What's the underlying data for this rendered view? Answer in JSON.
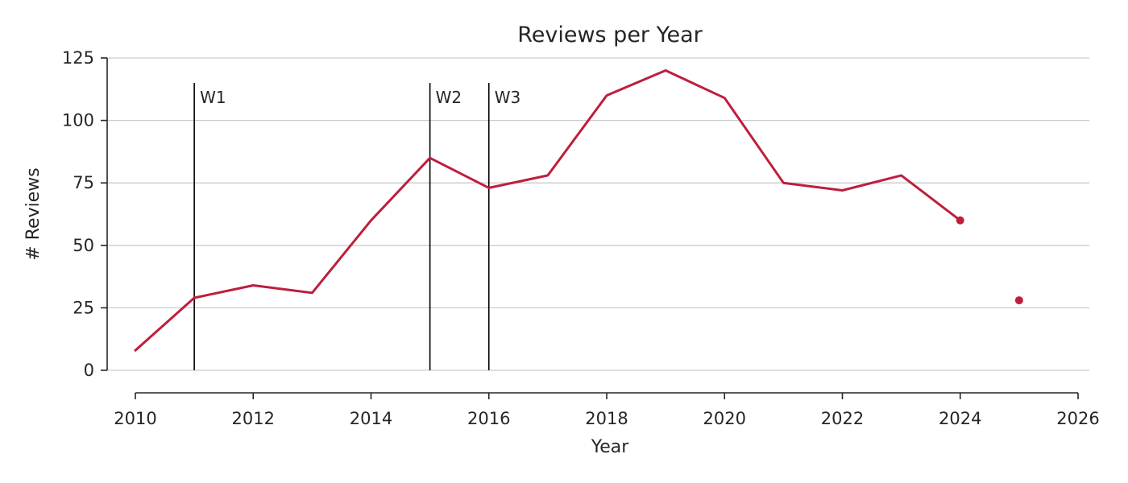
{
  "chart_data": {
    "type": "line",
    "title": "Reviews per Year",
    "xlabel": "Year",
    "ylabel": "# Reviews",
    "xlim": [
      2010,
      2026
    ],
    "ylim": [
      0,
      125
    ],
    "xticks": [
      "2010",
      "2012",
      "2014",
      "2016",
      "2018",
      "2020",
      "2022",
      "2024",
      "2026"
    ],
    "yticks": [
      "0",
      "25",
      "50",
      "75",
      "100",
      "125"
    ],
    "grid": "horizontal",
    "series": [
      {
        "x": [
          2010,
          2011,
          2012,
          2013,
          2014,
          2015,
          2016,
          2017,
          2018,
          2019,
          2020,
          2021,
          2022,
          2023,
          2024
        ],
        "y": [
          8,
          29,
          34,
          31,
          60,
          85,
          73,
          78,
          110,
          120,
          109,
          75,
          72,
          78,
          60
        ],
        "color": "#be1e3c"
      }
    ],
    "points": [
      {
        "x": 2024,
        "y": 60,
        "color": "#be1e3c"
      },
      {
        "x": 2025,
        "y": 28,
        "color": "#be1e3c"
      }
    ],
    "annotations": [
      {
        "x": 2011,
        "y_top": 115,
        "label": "W1"
      },
      {
        "x": 2015,
        "y_top": 115,
        "label": "W2"
      },
      {
        "x": 2016,
        "y_top": 115,
        "label": "W3"
      }
    ]
  }
}
